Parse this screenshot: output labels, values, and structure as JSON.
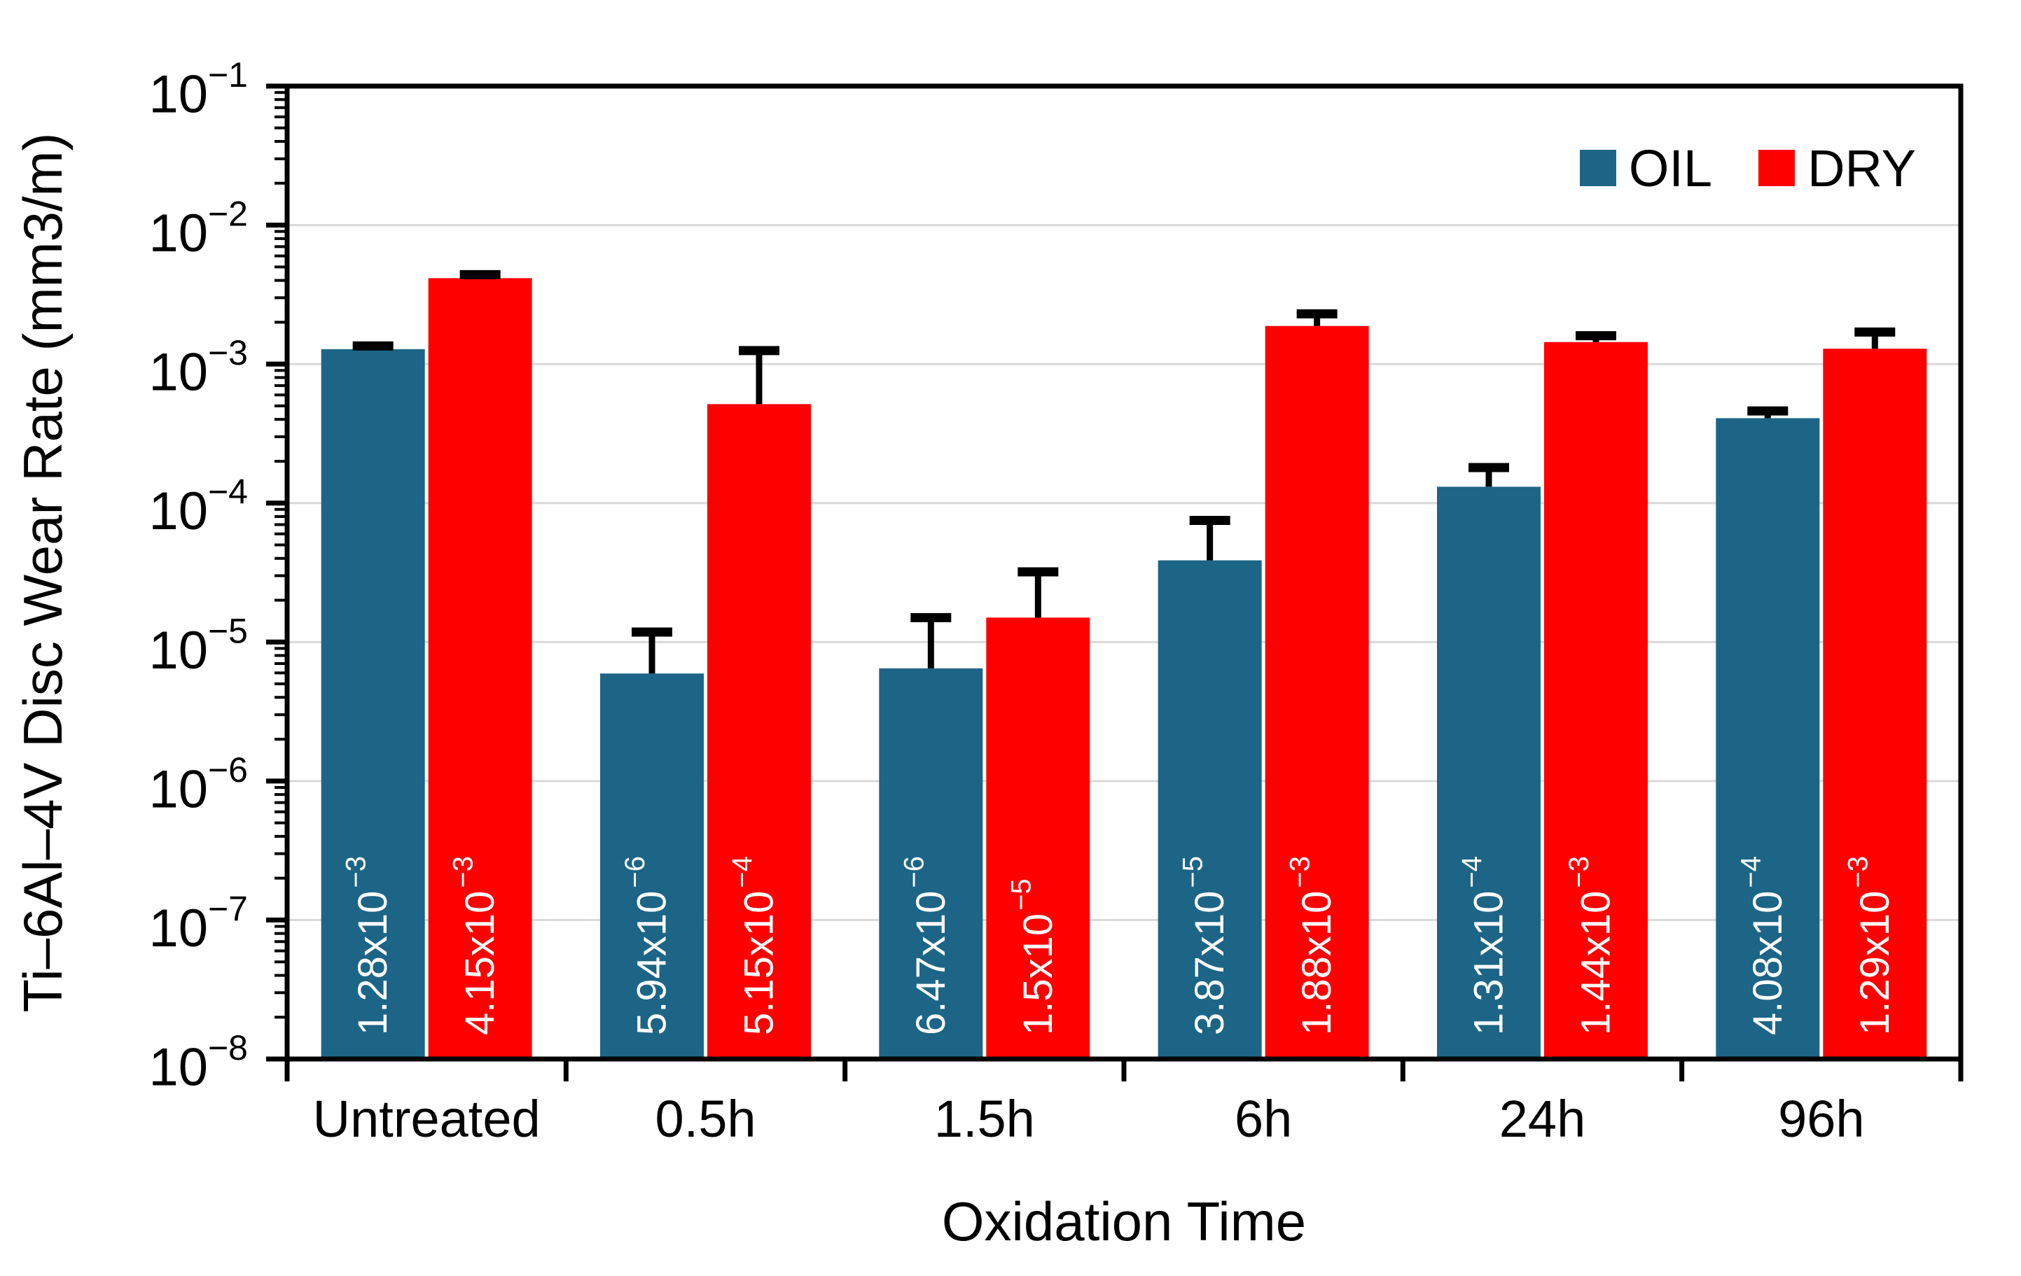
{
  "chart_data": {
    "type": "bar",
    "title": "",
    "xlabel": "Oxidation Time",
    "ylabel": "Ti–6Al–4V Disc Wear Rate (mm3/m)",
    "categories": [
      "Untreated",
      "0.5h",
      "1.5h",
      "6h",
      "24h",
      "96h"
    ],
    "y_scale": "log",
    "ylim": [
      1e-08,
      0.1
    ],
    "y_tick_base": "10",
    "y_tick_exponents": [
      -1,
      -2,
      -3,
      -4,
      -5,
      -6,
      -7,
      -8
    ],
    "grid": "horizontal-decades",
    "legend_position": "top-right",
    "series": [
      {
        "name": "OIL",
        "color": "#1D6586",
        "values": [
          0.00128,
          5.94e-06,
          6.47e-06,
          3.87e-05,
          0.000131,
          0.000408
        ],
        "error_top": [
          0.00135,
          1.18e-05,
          1.5e-05,
          7.5e-05,
          0.00018,
          0.00046
        ],
        "bar_labels": [
          {
            "base": "1.28x10",
            "exp": "-3"
          },
          {
            "base": "5.94x10",
            "exp": "-6"
          },
          {
            "base": "6.47x10",
            "exp": "-6"
          },
          {
            "base": "3.87x10",
            "exp": "-5"
          },
          {
            "base": "1.31x10",
            "exp": "-4"
          },
          {
            "base": "4.08x10",
            "exp": "-4"
          }
        ]
      },
      {
        "name": "DRY",
        "color": "#FE0000",
        "values": [
          0.00415,
          0.000515,
          1.5e-05,
          0.00188,
          0.00144,
          0.00129
        ],
        "error_top": [
          0.0044,
          0.00125,
          3.2e-05,
          0.0023,
          0.0016,
          0.0017
        ],
        "bar_labels": [
          {
            "base": "4.15x10",
            "exp": "-3"
          },
          {
            "base": "5.15x10",
            "exp": "-4"
          },
          {
            "base": "1.5x10",
            "exp": "-5"
          },
          {
            "base": "1.88x10",
            "exp": "-3"
          },
          {
            "base": "1.44x10",
            "exp": "-3"
          },
          {
            "base": "1.29x10",
            "exp": "-3"
          }
        ]
      }
    ]
  },
  "legend": {
    "items": [
      {
        "label": "OIL",
        "color": "#1D6586"
      },
      {
        "label": "DRY",
        "color": "#FE0000"
      }
    ]
  },
  "colors": {
    "background": "#ffffff",
    "axis": "#000000",
    "grid": "#d9d9d9",
    "bar_label_text": "#ffffff"
  }
}
